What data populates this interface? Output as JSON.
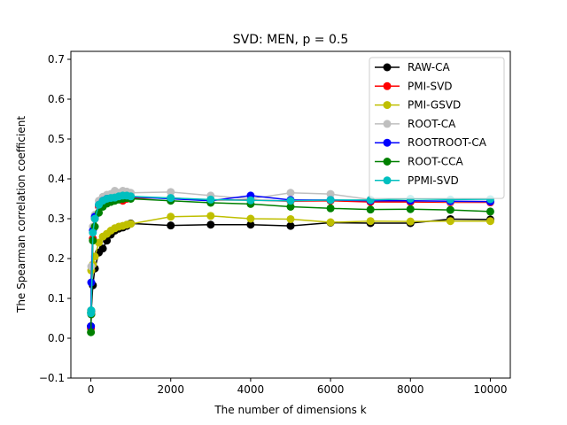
{
  "chart_data": {
    "type": "line",
    "title": "SVD: MEN, p = 0.5",
    "xlabel": "The number of dimensions k",
    "ylabel": "The Spearman correlation coefficient",
    "xlim": [
      -500,
      10500
    ],
    "ylim": [
      -0.1,
      0.72
    ],
    "xticks": [
      0,
      2000,
      4000,
      6000,
      8000,
      10000
    ],
    "yticks": [
      -0.1,
      0.0,
      0.1,
      0.2,
      0.3,
      0.4,
      0.5,
      0.6,
      0.7
    ],
    "ytick_labels": [
      "−0.1",
      "0.0",
      "0.1",
      "0.2",
      "0.3",
      "0.4",
      "0.5",
      "0.6",
      "0.7"
    ],
    "legend_position": "top-right",
    "x": [
      2,
      10,
      50,
      100,
      200,
      300,
      400,
      500,
      600,
      700,
      800,
      900,
      1000,
      2000,
      3000,
      4000,
      5000,
      6000,
      7000,
      8000,
      9000,
      10000
    ],
    "series": [
      {
        "name": "RAW-CA",
        "color": "#000000",
        "values": [
          0.03,
          0.068,
          0.133,
          0.175,
          0.215,
          0.225,
          0.245,
          0.26,
          0.27,
          0.275,
          0.278,
          0.282,
          0.288,
          0.283,
          0.285,
          0.285,
          0.282,
          0.29,
          0.289,
          0.289,
          0.299,
          0.298
        ]
      },
      {
        "name": "PMI-SVD",
        "color": "#ff0000",
        "values": [
          0.025,
          0.06,
          0.25,
          0.3,
          0.33,
          0.34,
          0.344,
          0.346,
          0.347,
          0.35,
          0.345,
          0.35,
          0.352,
          0.352,
          0.347,
          0.347,
          0.344,
          0.345,
          0.342,
          0.342,
          0.341,
          0.341
        ]
      },
      {
        "name": "PMI-GSVD",
        "color": "#bfbf00",
        "values": [
          0.065,
          0.17,
          0.185,
          0.205,
          0.24,
          0.255,
          0.262,
          0.27,
          0.276,
          0.28,
          0.282,
          0.285,
          0.287,
          0.305,
          0.307,
          0.3,
          0.299,
          0.291,
          0.294,
          0.293,
          0.294,
          0.294
        ]
      },
      {
        "name": "ROOT-CA",
        "color": "#bfbfbf",
        "values": [
          0.07,
          0.18,
          0.28,
          0.31,
          0.345,
          0.355,
          0.36,
          0.362,
          0.37,
          0.365,
          0.37,
          0.368,
          0.365,
          0.367,
          0.358,
          0.35,
          0.365,
          0.362,
          0.348,
          0.345,
          0.343,
          0.343
        ]
      },
      {
        "name": "ROOTROOT-CA",
        "color": "#0000ff",
        "values": [
          0.03,
          0.14,
          0.27,
          0.305,
          0.335,
          0.345,
          0.35,
          0.35,
          0.352,
          0.355,
          0.356,
          0.357,
          0.355,
          0.35,
          0.345,
          0.358,
          0.347,
          0.347,
          0.345,
          0.345,
          0.344,
          0.343
        ]
      },
      {
        "name": "ROOT-CCA",
        "color": "#008000",
        "values": [
          0.015,
          0.06,
          0.245,
          0.28,
          0.315,
          0.33,
          0.338,
          0.342,
          0.345,
          0.348,
          0.35,
          0.352,
          0.35,
          0.345,
          0.34,
          0.337,
          0.33,
          0.326,
          0.323,
          0.324,
          0.322,
          0.318
        ]
      },
      {
        "name": "PPMI-SVD",
        "color": "#00bfbf",
        "values": [
          0.063,
          0.07,
          0.265,
          0.3,
          0.335,
          0.345,
          0.35,
          0.352,
          0.353,
          0.356,
          0.358,
          0.358,
          0.356,
          0.352,
          0.348,
          0.346,
          0.345,
          0.347,
          0.347,
          0.35,
          0.348,
          0.349
        ]
      }
    ]
  }
}
